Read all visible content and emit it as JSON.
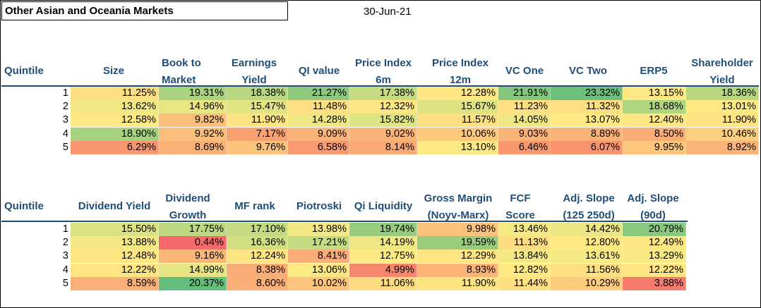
{
  "title": "Other Asian and Oceania Markets",
  "date": "30-Jun-21",
  "table1": {
    "headers": [
      "Quintile",
      "Size",
      "Book to Market",
      "Earnings Yield",
      "QI value",
      "Price Index 6m",
      "Price Index 12m",
      "VC One",
      "VC Two",
      "ERP5",
      "Shareholder Yield"
    ],
    "rows": [
      {
        "q": "1",
        "cells": [
          {
            "v": "11.25%",
            "c": "#fedf81"
          },
          {
            "v": "19.31%",
            "c": "#aad380"
          },
          {
            "v": "18.38%",
            "c": "#b9d780"
          },
          {
            "v": "21.27%",
            "c": "#8ec97d"
          },
          {
            "v": "17.38%",
            "c": "#c7dc81"
          },
          {
            "v": "12.28%",
            "c": "#fee683"
          },
          {
            "v": "21.91%",
            "c": "#84c67b"
          },
          {
            "v": "23.32%",
            "c": "#6ebf7b"
          },
          {
            "v": "13.15%",
            "c": "#fee883"
          },
          {
            "v": "18.36%",
            "c": "#b9d780"
          }
        ]
      },
      {
        "q": "2",
        "cells": [
          {
            "v": "13.62%",
            "c": "#f2e884"
          },
          {
            "v": "14.96%",
            "c": "#e8e583"
          },
          {
            "v": "15.47%",
            "c": "#e2e383"
          },
          {
            "v": "11.48%",
            "c": "#fee082"
          },
          {
            "v": "12.32%",
            "c": "#fee683"
          },
          {
            "v": "15.67%",
            "c": "#dfe283"
          },
          {
            "v": "11.23%",
            "c": "#fedf81"
          },
          {
            "v": "11.32%",
            "c": "#fedf81"
          },
          {
            "v": "18.68%",
            "c": "#b0d57f"
          },
          {
            "v": "13.01%",
            "c": "#fee983"
          }
        ]
      },
      {
        "q": "3",
        "cells": [
          {
            "v": "12.58%",
            "c": "#fee883"
          },
          {
            "v": "9.82%",
            "c": "#fcbf7b"
          },
          {
            "v": "11.90%",
            "c": "#fee382"
          },
          {
            "v": "14.28%",
            "c": "#eee784"
          },
          {
            "v": "15.82%",
            "c": "#dde283"
          },
          {
            "v": "11.57%",
            "c": "#fee082"
          },
          {
            "v": "14.05%",
            "c": "#f0e784"
          },
          {
            "v": "13.07%",
            "c": "#fee983"
          },
          {
            "v": "12.40%",
            "c": "#fee683"
          },
          {
            "v": "11.90%",
            "c": "#fee382"
          }
        ]
      },
      {
        "q": "4",
        "cells": [
          {
            "v": "18.90%",
            "c": "#a6d27f"
          },
          {
            "v": "9.92%",
            "c": "#fcbf7b"
          },
          {
            "v": "7.17%",
            "c": "#f9a173"
          },
          {
            "v": "9.09%",
            "c": "#fbb478"
          },
          {
            "v": "9.02%",
            "c": "#fbb478"
          },
          {
            "v": "10.06%",
            "c": "#fcc97d"
          },
          {
            "v": "9.03%",
            "c": "#fbb478"
          },
          {
            "v": "8.89%",
            "c": "#fbb277"
          },
          {
            "v": "8.50%",
            "c": "#faae76"
          },
          {
            "v": "10.46%",
            "c": "#fccf7e"
          }
        ]
      },
      {
        "q": "5",
        "cells": [
          {
            "v": "6.29%",
            "c": "#f8966f"
          },
          {
            "v": "8.69%",
            "c": "#fbb076"
          },
          {
            "v": "9.76%",
            "c": "#fcc37c"
          },
          {
            "v": "6.58%",
            "c": "#f89a71"
          },
          {
            "v": "8.14%",
            "c": "#faaa75"
          },
          {
            "v": "13.10%",
            "c": "#fde983"
          },
          {
            "v": "6.46%",
            "c": "#f8986f"
          },
          {
            "v": "6.07%",
            "c": "#f8936e"
          },
          {
            "v": "9.95%",
            "c": "#fcc77d"
          },
          {
            "v": "8.92%",
            "c": "#fbb377"
          }
        ]
      }
    ]
  },
  "table2": {
    "headers": [
      "Quintile",
      "Dividend Yield",
      "Dividend Growth",
      "MF rank",
      "Piotroski",
      "Qi Liquidity",
      "Gross Margin (Noyv-Marx)",
      "FCF Score",
      "Adj. Slope (125 250d)",
      "Adj. Slope (90d)"
    ],
    "rows": [
      {
        "q": "1",
        "cells": [
          {
            "v": "15.50%",
            "c": "#dbe283"
          },
          {
            "v": "17.75%",
            "c": "#bdd881"
          },
          {
            "v": "17.10%",
            "c": "#c6db81"
          },
          {
            "v": "13.98%",
            "c": "#f2e884"
          },
          {
            "v": "19.74%",
            "c": "#98cb7e"
          },
          {
            "v": "9.98%",
            "c": "#fcc27c"
          },
          {
            "v": "13.46%",
            "c": "#f6e984"
          },
          {
            "v": "14.42%",
            "c": "#eae684"
          },
          {
            "v": "20.79%",
            "c": "#8ac87d"
          }
        ]
      },
      {
        "q": "2",
        "cells": [
          {
            "v": "13.88%",
            "c": "#f3e884"
          },
          {
            "v": "0.44%",
            "c": "#f8696b"
          },
          {
            "v": "16.36%",
            "c": "#d2de82"
          },
          {
            "v": "17.21%",
            "c": "#c4db81"
          },
          {
            "v": "14.19%",
            "c": "#eee784"
          },
          {
            "v": "19.59%",
            "c": "#9acc7e"
          },
          {
            "v": "11.13%",
            "c": "#fedc81"
          },
          {
            "v": "12.80%",
            "c": "#fee983"
          },
          {
            "v": "12.49%",
            "c": "#fee683"
          }
        ]
      },
      {
        "q": "3",
        "cells": [
          {
            "v": "12.48%",
            "c": "#fee683"
          },
          {
            "v": "9.16%",
            "c": "#fbb778"
          },
          {
            "v": "12.24%",
            "c": "#fee482"
          },
          {
            "v": "8.41%",
            "c": "#faad76"
          },
          {
            "v": "12.75%",
            "c": "#fee983"
          },
          {
            "v": "12.29%",
            "c": "#fee582"
          },
          {
            "v": "13.84%",
            "c": "#f3e884"
          },
          {
            "v": "13.61%",
            "c": "#f5e984"
          },
          {
            "v": "13.29%",
            "c": "#f8e984"
          }
        ]
      },
      {
        "q": "4",
        "cells": [
          {
            "v": "12.22%",
            "c": "#fee482"
          },
          {
            "v": "14.99%",
            "c": "#e7e583"
          },
          {
            "v": "8.38%",
            "c": "#faad76"
          },
          {
            "v": "13.06%",
            "c": "#fde983"
          },
          {
            "v": "4.99%",
            "c": "#f7876c"
          },
          {
            "v": "8.93%",
            "c": "#fbb377"
          },
          {
            "v": "12.82%",
            "c": "#fee983"
          },
          {
            "v": "11.56%",
            "c": "#fee082"
          },
          {
            "v": "12.22%",
            "c": "#fee482"
          }
        ]
      },
      {
        "q": "5",
        "cells": [
          {
            "v": "8.59%",
            "c": "#faaf76"
          },
          {
            "v": "20.37%",
            "c": "#63be7b"
          },
          {
            "v": "8.60%",
            "c": "#faaf76"
          },
          {
            "v": "10.02%",
            "c": "#fcc47c"
          },
          {
            "v": "11.06%",
            "c": "#fedb81"
          },
          {
            "v": "11.90%",
            "c": "#fee382"
          },
          {
            "v": "11.44%",
            "c": "#fedf81"
          },
          {
            "v": "10.29%",
            "c": "#fccb7e"
          },
          {
            "v": "3.88%",
            "c": "#f57b6c"
          }
        ]
      }
    ]
  }
}
